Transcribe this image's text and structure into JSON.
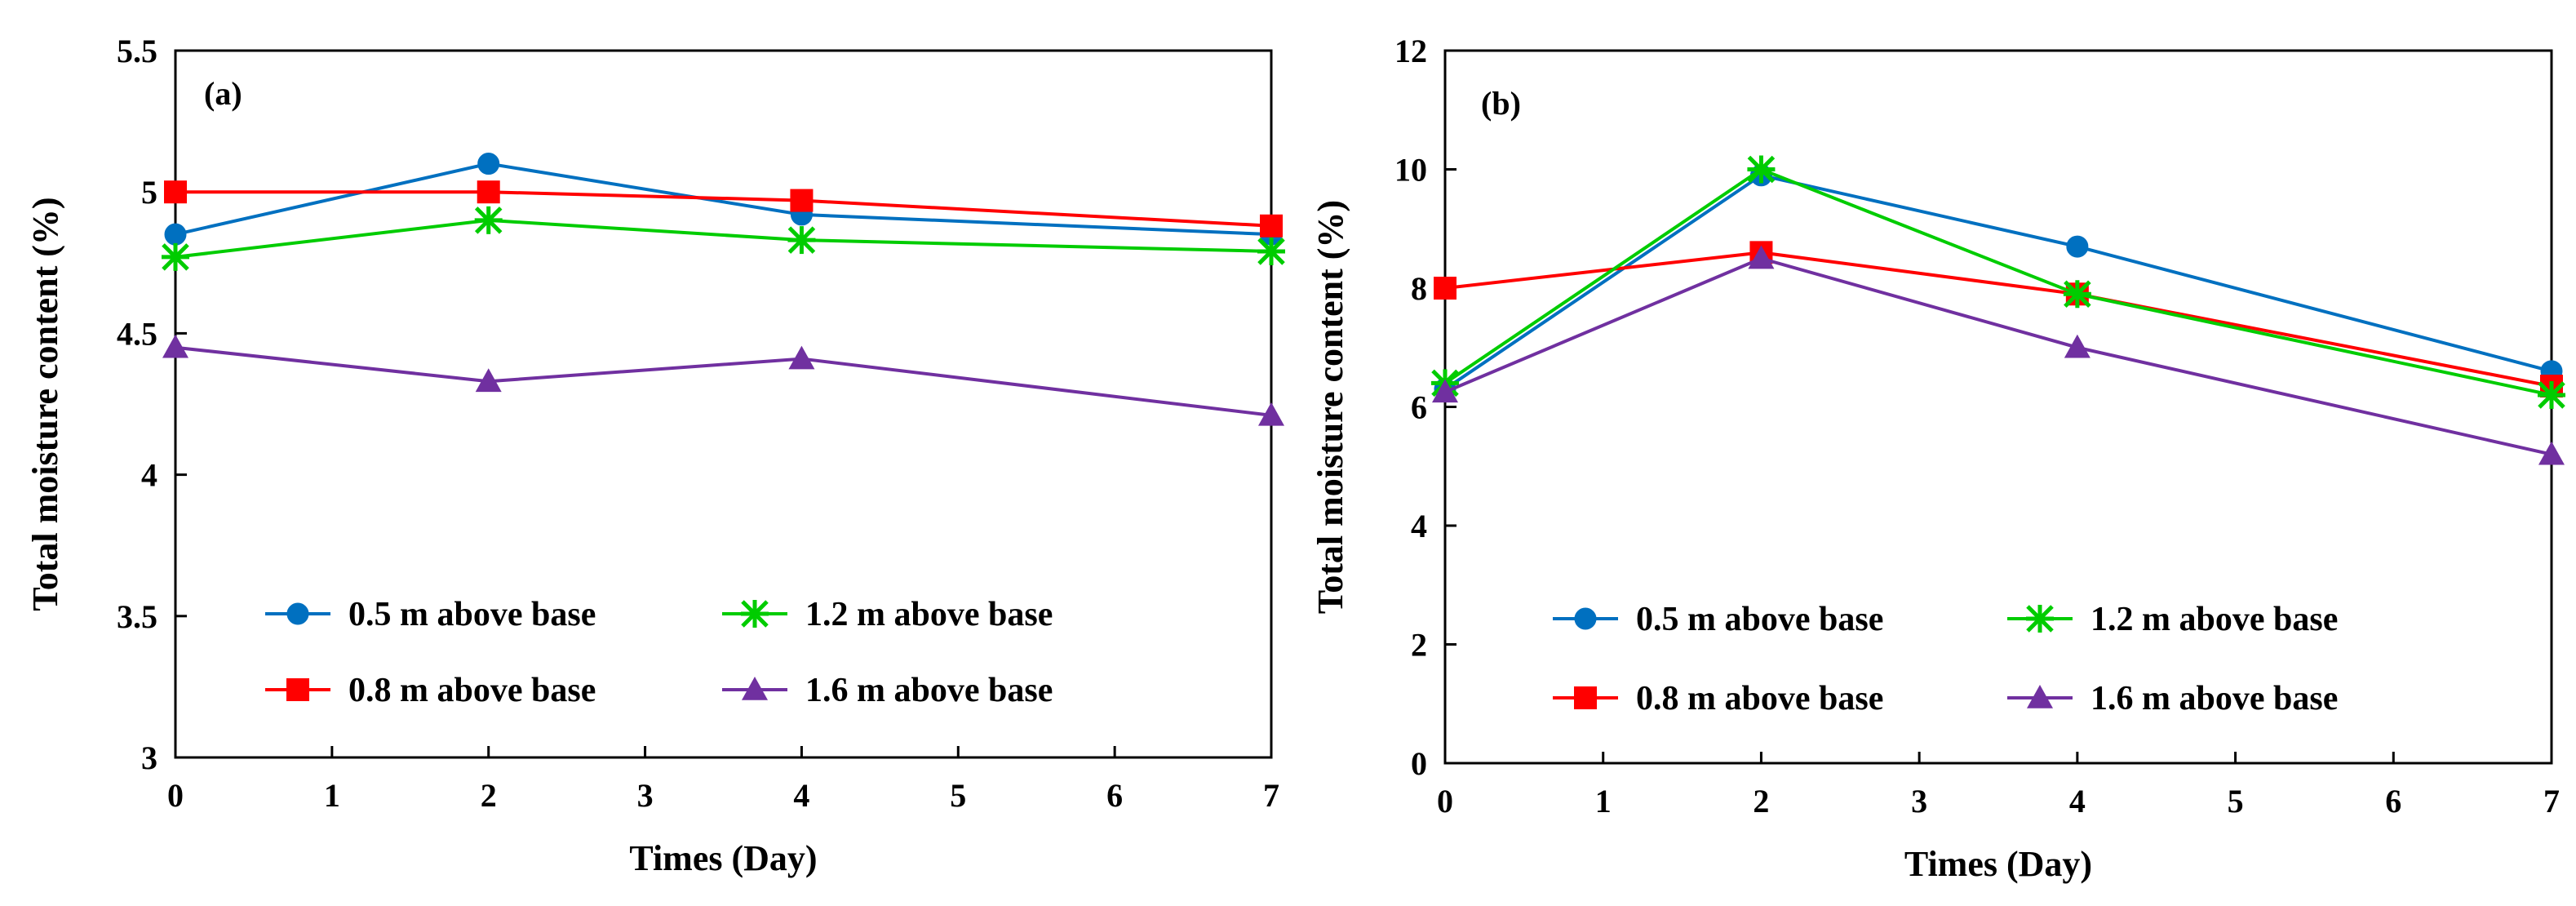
{
  "chart_data": [
    {
      "type": "line",
      "panel_label": "(a)",
      "xlabel": "Times (Day)",
      "ylabel": "Total moisture content (%)",
      "xlim": [
        0,
        7
      ],
      "ylim": [
        3,
        5.5
      ],
      "xticks": [
        0,
        1,
        2,
        3,
        4,
        5,
        6,
        7
      ],
      "xtick_labels": [
        "0",
        "1",
        "2",
        "3",
        "4",
        "5",
        "6",
        "7"
      ],
      "yticks": [
        3,
        3.5,
        4,
        4.5,
        5,
        5.5
      ],
      "ytick_labels": [
        "3",
        "3.5",
        "4",
        "4.5",
        "5",
        "5.5"
      ],
      "grid": false,
      "legend_position": "bottom",
      "series": [
        {
          "name": "0.5 m above base",
          "color": "#0070C0",
          "marker": "circle",
          "x": [
            0,
            2,
            4,
            7
          ],
          "values": [
            4.85,
            5.1,
            4.92,
            4.85
          ]
        },
        {
          "name": "0.8 m above base",
          "color": "#FF0000",
          "marker": "square",
          "x": [
            0,
            2,
            4,
            7
          ],
          "values": [
            5.0,
            5.0,
            4.97,
            4.88
          ]
        },
        {
          "name": "1.2 m above base",
          "color": "#00CC00",
          "marker": "asterisk",
          "x": [
            0,
            2,
            4,
            7
          ],
          "values": [
            4.77,
            4.9,
            4.83,
            4.79
          ]
        },
        {
          "name": "1.6 m above base",
          "color": "#7030A0",
          "marker": "triangle",
          "x": [
            0,
            2,
            4,
            7
          ],
          "values": [
            4.45,
            4.33,
            4.41,
            4.21
          ]
        }
      ]
    },
    {
      "type": "line",
      "panel_label": "(b)",
      "xlabel": "Times (Day)",
      "ylabel": "Total moisture content (%)",
      "xlim": [
        0,
        7
      ],
      "ylim": [
        0,
        12
      ],
      "xticks": [
        0,
        1,
        2,
        3,
        4,
        5,
        6,
        7
      ],
      "xtick_labels": [
        "0",
        "1",
        "2",
        "3",
        "4",
        "5",
        "6",
        "7"
      ],
      "yticks": [
        0,
        2,
        4,
        6,
        8,
        10,
        12
      ],
      "ytick_labels": [
        "0",
        "2",
        "4",
        "6",
        "8",
        "10",
        "12"
      ],
      "grid": false,
      "legend_position": "bottom",
      "series": [
        {
          "name": "0.5 m above base",
          "color": "#0070C0",
          "marker": "circle",
          "x": [
            0,
            2,
            4,
            7
          ],
          "values": [
            6.3,
            9.9,
            8.7,
            6.6
          ]
        },
        {
          "name": "0.8 m above base",
          "color": "#FF0000",
          "marker": "square",
          "x": [
            0,
            2,
            4,
            7
          ],
          "values": [
            8.0,
            8.6,
            7.9,
            6.35
          ]
        },
        {
          "name": "1.2 m above base",
          "color": "#00CC00",
          "marker": "asterisk",
          "x": [
            0,
            2,
            4,
            7
          ],
          "values": [
            6.4,
            10.0,
            7.9,
            6.2
          ]
        },
        {
          "name": "1.6 m above base",
          "color": "#7030A0",
          "marker": "triangle",
          "x": [
            0,
            2,
            4,
            7
          ],
          "values": [
            6.25,
            8.5,
            7.0,
            5.2
          ]
        }
      ]
    }
  ]
}
